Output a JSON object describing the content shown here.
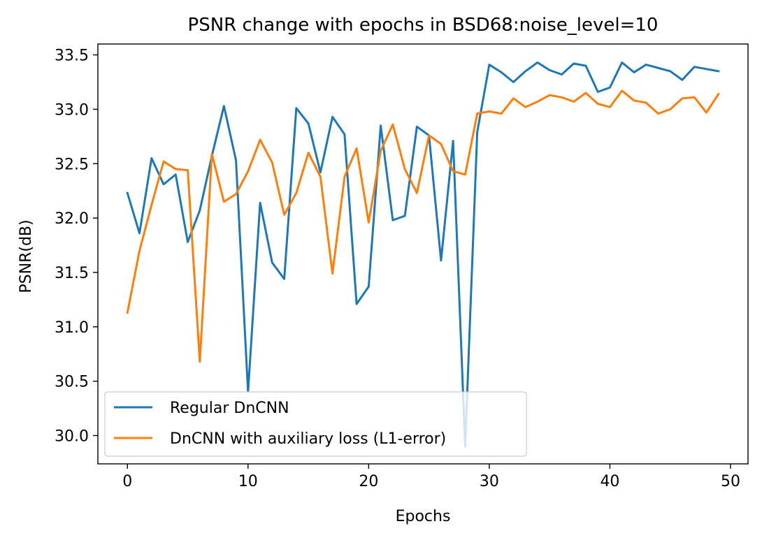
{
  "chart_data": {
    "type": "line",
    "title": "PSNR change with epochs in BSD68:noise_level=10",
    "xlabel": "Epochs",
    "ylabel": "PSNR(dB)",
    "xlim": [
      -2.45,
      51.45
    ],
    "ylim": [
      29.74,
      33.6
    ],
    "xticks": [
      0,
      10,
      20,
      30,
      40,
      50
    ],
    "yticks": [
      30.0,
      30.5,
      31.0,
      31.5,
      32.0,
      32.5,
      33.0,
      33.5
    ],
    "xtick_labels": [
      "0",
      "10",
      "20",
      "30",
      "40",
      "50"
    ],
    "ytick_labels": [
      "30.0",
      "30.5",
      "31.0",
      "31.5",
      "32.0",
      "32.5",
      "33.0",
      "33.5"
    ],
    "grid": false,
    "legend": "lower-left",
    "x": [
      0,
      1,
      2,
      3,
      4,
      5,
      6,
      7,
      8,
      9,
      10,
      11,
      12,
      13,
      14,
      15,
      16,
      17,
      18,
      19,
      20,
      21,
      22,
      23,
      24,
      25,
      26,
      27,
      28,
      29,
      30,
      31,
      32,
      33,
      34,
      35,
      36,
      37,
      38,
      39,
      40,
      41,
      42,
      43,
      44,
      45,
      46,
      47,
      48,
      49
    ],
    "series": [
      {
        "name": "Regular DnCNN",
        "color": "#1f77b4",
        "values": [
          32.23,
          31.86,
          32.55,
          32.31,
          32.4,
          31.78,
          32.07,
          32.57,
          33.03,
          32.53,
          30.4,
          32.14,
          31.59,
          31.44,
          33.01,
          32.87,
          32.42,
          32.93,
          32.77,
          31.21,
          31.37,
          32.85,
          31.98,
          32.02,
          32.84,
          32.76,
          31.61,
          32.71,
          29.9,
          32.79,
          33.41,
          33.34,
          33.25,
          33.35,
          33.43,
          33.36,
          33.32,
          33.42,
          33.4,
          33.16,
          33.2,
          33.43,
          33.34,
          33.41,
          33.38,
          33.35,
          33.27,
          33.39,
          33.37,
          33.35
        ]
      },
      {
        "name": "DnCNN with auxiliary loss (L1-error)",
        "color": "#ff7f0e",
        "values": [
          31.13,
          31.7,
          32.12,
          32.52,
          32.45,
          32.44,
          30.68,
          32.59,
          32.15,
          32.22,
          32.43,
          32.72,
          32.51,
          32.03,
          32.23,
          32.6,
          32.38,
          31.49,
          32.38,
          32.64,
          31.96,
          32.62,
          32.86,
          32.45,
          32.23,
          32.76,
          32.68,
          32.43,
          32.4,
          32.96,
          32.98,
          32.96,
          33.1,
          33.02,
          33.07,
          33.13,
          33.11,
          33.07,
          33.15,
          33.05,
          33.02,
          33.17,
          33.08,
          33.06,
          32.96,
          33.0,
          33.1,
          33.11,
          32.97,
          33.14
        ]
      }
    ]
  }
}
